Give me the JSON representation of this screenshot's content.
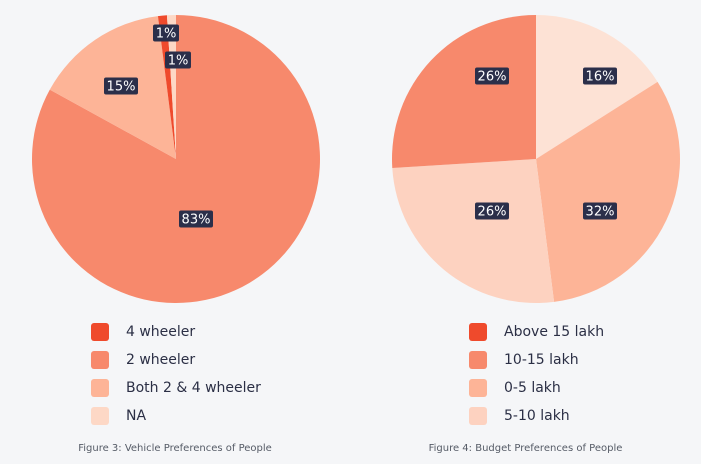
{
  "chart_data": [
    {
      "type": "pie",
      "title": "",
      "caption": "Figure 3: Vehicle Preferences of People",
      "legend_position": "bottom",
      "categories": [
        "4 wheeler",
        "2 wheeler",
        "Both 2 & 4 wheeler",
        "NA"
      ],
      "values": [
        1,
        83,
        15,
        1
      ],
      "data_labels": [
        "1%",
        "83%",
        "15%",
        "1%"
      ],
      "colors": [
        "#ef4a2c",
        "#f7896c",
        "#fdb497",
        "#fdd8c6"
      ]
    },
    {
      "type": "pie",
      "title": "",
      "caption": "Figure 4: Budget Preferences of People",
      "legend_position": "bottom",
      "categories": [
        "Above 15 lakh",
        "10-15 lakh",
        "0-5 lakh",
        "5-10 lakh"
      ],
      "values": [
        0,
        26,
        32,
        26
      ],
      "extra_slice": {
        "value": 16,
        "label": "16%",
        "color": "#fde2d5"
      },
      "data_labels": [
        "",
        "26%",
        "32%",
        "26%"
      ],
      "colors": [
        "#ef4a2c",
        "#f7896c",
        "#fdb497",
        "#fdd2c0"
      ]
    }
  ],
  "theme": {
    "label_box_color": "#2b2f4a",
    "label_text_color": "#ffffff"
  }
}
